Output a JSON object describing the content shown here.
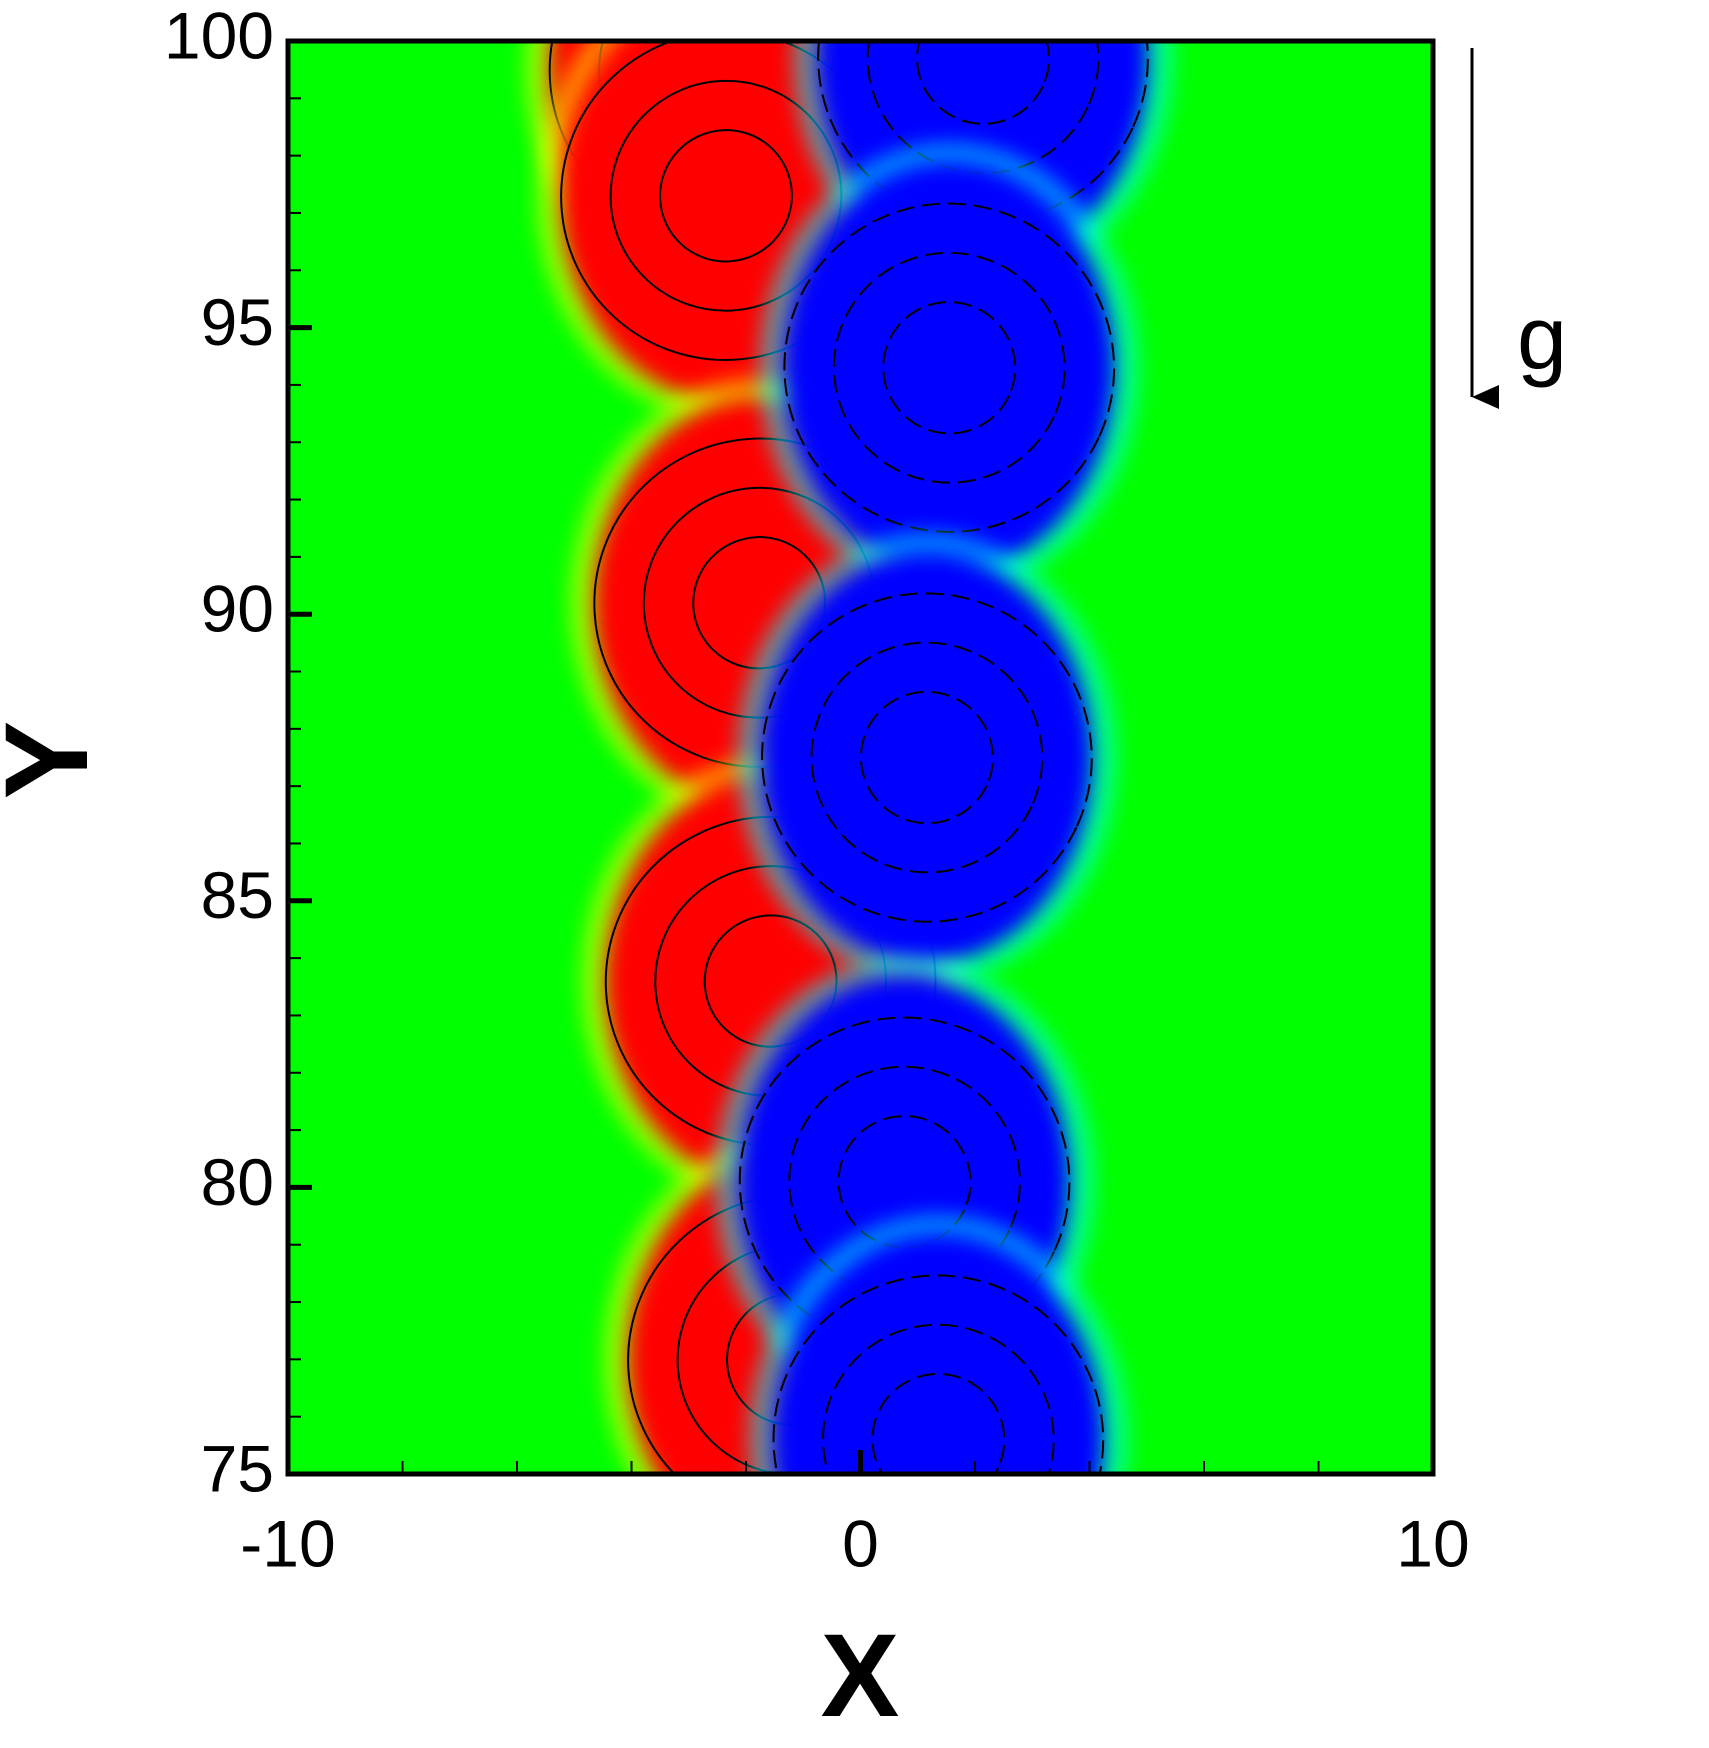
{
  "chart_data": {
    "type": "contour",
    "xlabel": "X",
    "ylabel": "Y",
    "annotation": "g",
    "xlim": [
      -10,
      10
    ],
    "ylim": [
      75,
      100
    ],
    "xticks": [
      -10,
      0,
      10
    ],
    "yticks": [
      75,
      80,
      85,
      90,
      95,
      100
    ],
    "xminorticks": [
      -8,
      -6,
      -4,
      -2,
      2,
      4,
      6,
      8
    ],
    "yminorticks": [
      76,
      77,
      78,
      79,
      81,
      82,
      83,
      84,
      86,
      87,
      88,
      89,
      91,
      92,
      93,
      94,
      96,
      97,
      98,
      99
    ],
    "background": "#00ff00",
    "series": [
      {
        "color": "#ff0000",
        "x": [
          -2.55,
          -2.35,
          -1.77,
          -1.57,
          -1.18
        ],
        "y": [
          99.5,
          97.3,
          90.2,
          83.6,
          77.0
        ]
      },
      {
        "color": "#0000ff",
        "x": [
          2.14,
          1.55,
          1.16,
          0.77,
          1.36
        ],
        "y": [
          99.7,
          94.3,
          87.5,
          80.1,
          75.6
        ]
      }
    ]
  }
}
